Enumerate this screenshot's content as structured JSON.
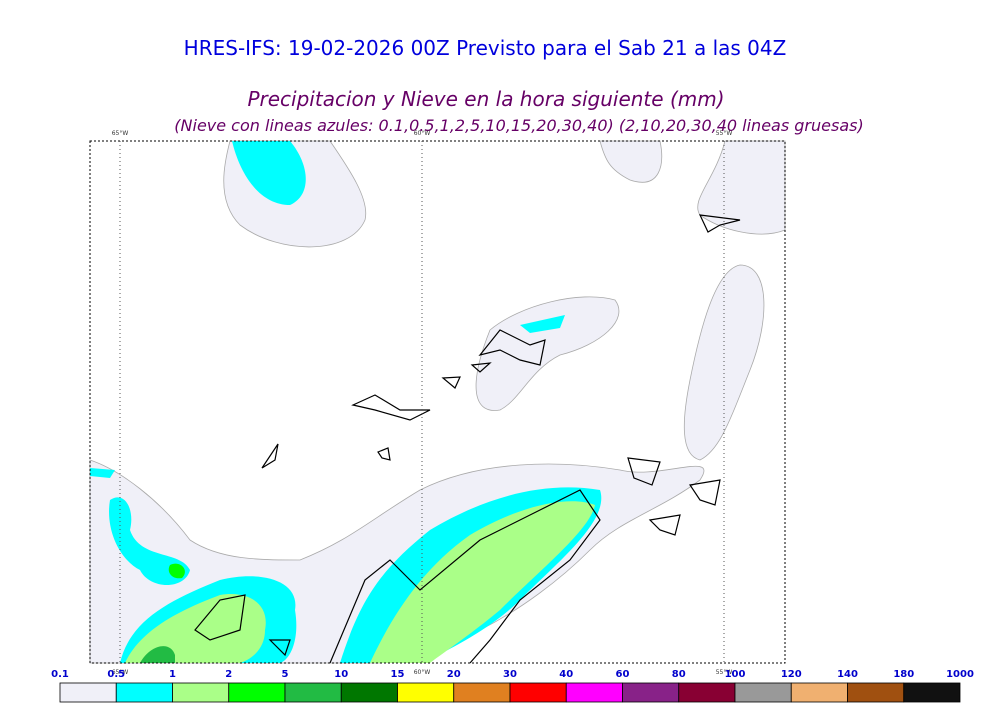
{
  "header": {
    "title": "HRES-IFS: 19-02-2026 00Z Previsto para el Sab 21 a las 04Z",
    "subtitle": "Precipitacion y Nieve en la hora siguiente (mm)",
    "note": "(Nieve con lineas azules: 0.1,0.5,1,2,5,10,15,20,30,40)  (2,10,20,30,40 lineas gruesas)"
  },
  "map": {
    "lon_labels": [
      "65°W",
      "60°W",
      "55°W"
    ]
  },
  "legend": {
    "levels": [
      "0.1",
      "0.5",
      "1",
      "2",
      "5",
      "10",
      "15",
      "20",
      "30",
      "40",
      "60",
      "80",
      "100",
      "120",
      "140",
      "180",
      "1000"
    ],
    "colors": [
      "#f0f0f8",
      "#00ffff",
      "#aaff88",
      "#00ff00",
      "#22bb44",
      "#007700",
      "#ffff00",
      "#e08020",
      "#ff0000",
      "#ff00ff",
      "#882288",
      "#880033",
      "#999999",
      "#f0b070",
      "#a05010",
      "#111111"
    ]
  }
}
